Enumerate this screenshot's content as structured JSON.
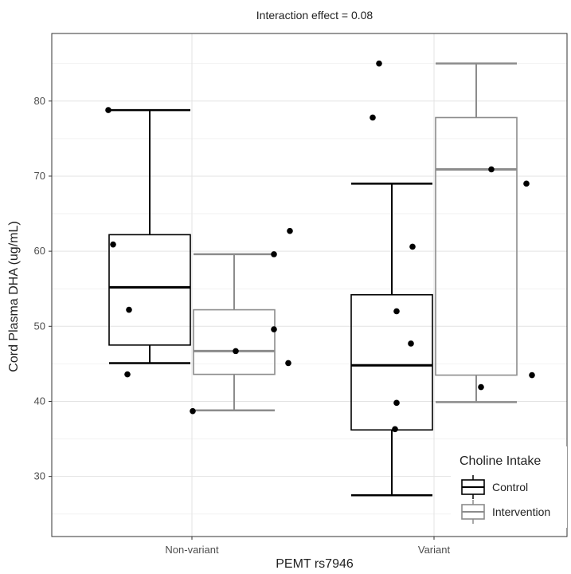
{
  "chart_data": {
    "type": "box",
    "title": "Interaction effect = 0.08",
    "xlabel": "PEMT rs7946",
    "ylabel": "Cord Plasma DHA (ug/mL)",
    "categories": [
      "Non-variant",
      "Variant"
    ],
    "ylim": [
      22,
      89
    ],
    "y_ticks": [
      30,
      40,
      50,
      60,
      70,
      80
    ],
    "grid": true,
    "legend": {
      "title": "Choline Intake",
      "position": "bottom-right"
    },
    "series": [
      {
        "name": "Control",
        "color": "#000000",
        "boxes": [
          {
            "category": "Non-variant",
            "min": 45.1,
            "q1": 47.5,
            "median": 55.2,
            "q3": 62.2,
            "max": 78.8
          },
          {
            "category": "Variant",
            "min": 27.5,
            "q1": 36.2,
            "median": 44.8,
            "q3": 54.2,
            "max": 69.0
          }
        ],
        "points": [
          {
            "category": "Non-variant",
            "y": 78.8
          },
          {
            "category": "Non-variant",
            "y": 60.9
          },
          {
            "category": "Non-variant",
            "y": 52.2
          },
          {
            "category": "Non-variant",
            "y": 43.6
          },
          {
            "category": "Variant",
            "y": 85.0
          },
          {
            "category": "Variant",
            "y": 77.8
          },
          {
            "category": "Variant",
            "y": 60.6
          },
          {
            "category": "Variant",
            "y": 52.0
          },
          {
            "category": "Variant",
            "y": 47.7
          },
          {
            "category": "Variant",
            "y": 39.8
          },
          {
            "category": "Variant",
            "y": 36.3
          }
        ]
      },
      {
        "name": "Intervention",
        "color": "#8c8c8c",
        "boxes": [
          {
            "category": "Non-variant",
            "min": 38.8,
            "q1": 43.6,
            "median": 46.7,
            "q3": 52.2,
            "max": 59.6
          },
          {
            "category": "Variant",
            "min": 39.9,
            "q1": 43.5,
            "median": 70.9,
            "q3": 77.8,
            "max": 85.0
          }
        ],
        "points": [
          {
            "category": "Non-variant",
            "y": 62.7
          },
          {
            "category": "Non-variant",
            "y": 59.6
          },
          {
            "category": "Non-variant",
            "y": 49.6
          },
          {
            "category": "Non-variant",
            "y": 46.7
          },
          {
            "category": "Non-variant",
            "y": 45.1
          },
          {
            "category": "Non-variant",
            "y": 38.7
          },
          {
            "category": "Variant",
            "y": 70.9
          },
          {
            "category": "Variant",
            "y": 69.0
          },
          {
            "category": "Variant",
            "y": 43.5
          },
          {
            "category": "Variant",
            "y": 41.9
          }
        ]
      }
    ]
  }
}
